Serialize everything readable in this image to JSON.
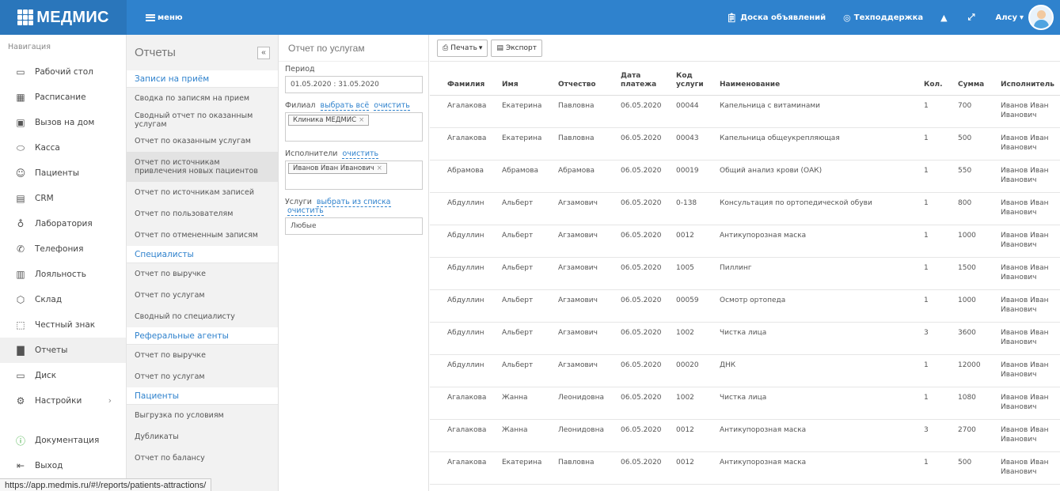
{
  "header": {
    "brand": "МЕДМИС",
    "menu_label": "меню",
    "board_label": "Доска объявлений",
    "support_label": "Техподдержка",
    "user_name": "Алсу"
  },
  "nav": {
    "title": "Навигация",
    "items": [
      {
        "label": "Рабочий стол",
        "icon": "desktop-icon"
      },
      {
        "label": "Расписание",
        "icon": "calendar-icon"
      },
      {
        "label": "Вызов на дом",
        "icon": "car-icon"
      },
      {
        "label": "Касса",
        "icon": "pill-icon"
      },
      {
        "label": "Пациенты",
        "icon": "users-icon"
      },
      {
        "label": "CRM",
        "icon": "crm-icon"
      },
      {
        "label": "Лаборатория",
        "icon": "flask-icon"
      },
      {
        "label": "Телефония",
        "icon": "phone-icon"
      },
      {
        "label": "Лояльность",
        "icon": "gift-icon"
      },
      {
        "label": "Склад",
        "icon": "box-icon"
      },
      {
        "label": "Честный знак",
        "icon": "scan-icon"
      },
      {
        "label": "Отчеты",
        "icon": "chart-icon"
      },
      {
        "label": "Диск",
        "icon": "folder-icon"
      },
      {
        "label": "Настройки",
        "icon": "gear-icon"
      }
    ],
    "docs_label": "Документация",
    "logout_label": "Выход"
  },
  "reports": {
    "title": "Отчеты",
    "sections": [
      {
        "title": "Записи на приём",
        "items": [
          "Сводка по записям на прием",
          "Сводный отчет по оказанным услугам",
          "Отчет по оказанным услугам",
          "Отчет по источникам привлечения новых пациентов",
          "Отчет по источникам записей",
          "Отчет по пользователям",
          "Отчет по отмененным записям"
        ]
      },
      {
        "title": "Специалисты",
        "items": [
          "Отчет по выручке",
          "Отчет по услугам",
          "Сводный по специалисту"
        ]
      },
      {
        "title": "Реферальные агенты",
        "items": [
          "Отчет по выручке",
          "Отчет по услугам"
        ]
      },
      {
        "title": "Пациенты",
        "items": [
          "Выгрузка по условиям",
          "Дубликаты",
          "Отчет по балансу"
        ]
      }
    ]
  },
  "filters": {
    "title": "Отчет по услугам",
    "period_label": "Период",
    "period_value": "01.05.2020 : 31.05.2020",
    "branch_label": "Филиал",
    "select_all": "выбрать всё",
    "clear": "очистить",
    "branch_tag": "Клиника МЕДМИС",
    "performers_label": "Исполнители",
    "performer_tag": "Иванов Иван Иванович",
    "services_label": "Услуги",
    "select_from_list": "выбрать из списка",
    "services_value": "Любые"
  },
  "toolbar": {
    "print_label": "Печать",
    "export_label": "Экспорт"
  },
  "table": {
    "headers": [
      "Фамилия",
      "Имя",
      "Отчество",
      "Дата платежа",
      "Код услуги",
      "Наименование",
      "Кол.",
      "Сумма",
      "Исполнитель"
    ],
    "rows": [
      [
        "Агалакова",
        "Екатерина",
        "Павловна",
        "06.05.2020",
        "00044",
        "Капельница с витаминами",
        "1",
        "700",
        "Иванов Иван Иванович"
      ],
      [
        "Агалакова",
        "Екатерина",
        "Павловна",
        "06.05.2020",
        "00043",
        "Капельница общеукрепляющая",
        "1",
        "500",
        "Иванов Иван Иванович"
      ],
      [
        "Абрамова",
        "Абрамова",
        "Абрамова",
        "06.05.2020",
        "00019",
        "Общий анализ крови (ОАК)",
        "1",
        "550",
        "Иванов Иван Иванович"
      ],
      [
        "Абдуллин",
        "Альберт",
        "Агзамович",
        "06.05.2020",
        "0-138",
        "Консультация по ортопедической обуви",
        "1",
        "800",
        "Иванов Иван Иванович"
      ],
      [
        "Абдуллин",
        "Альберт",
        "Агзамович",
        "06.05.2020",
        "0012",
        "Антикупорозная маска",
        "1",
        "1000",
        "Иванов Иван Иванович"
      ],
      [
        "Абдуллин",
        "Альберт",
        "Агзамович",
        "06.05.2020",
        "1005",
        "Пиллинг",
        "1",
        "1500",
        "Иванов Иван Иванович"
      ],
      [
        "Абдуллин",
        "Альберт",
        "Агзамович",
        "06.05.2020",
        "00059",
        "Осмотр ортопеда",
        "1",
        "1000",
        "Иванов Иван Иванович"
      ],
      [
        "Абдуллин",
        "Альберт",
        "Агзамович",
        "06.05.2020",
        "1002",
        "Чистка лица",
        "3",
        "3600",
        "Иванов Иван Иванович"
      ],
      [
        "Абдуллин",
        "Альберт",
        "Агзамович",
        "06.05.2020",
        "00020",
        "ДНК",
        "1",
        "12000",
        "Иванов Иван Иванович"
      ],
      [
        "Агалакова",
        "Жанна",
        "Леонидовна",
        "06.05.2020",
        "1002",
        "Чистка лица",
        "1",
        "1080",
        "Иванов Иван Иванович"
      ],
      [
        "Агалакова",
        "Жанна",
        "Леонидовна",
        "06.05.2020",
        "0012",
        "Антикупорозная маска",
        "3",
        "2700",
        "Иванов Иван Иванович"
      ],
      [
        "Агалакова",
        "Екатерина",
        "Павловна",
        "06.05.2020",
        "0012",
        "Антикупорозная маска",
        "1",
        "500",
        "Иванов Иван Иванович"
      ]
    ]
  },
  "status_url": "https://app.medmis.ru/#!/reports/patients-attractions/",
  "colors": {
    "accent": "#2f82cd"
  }
}
